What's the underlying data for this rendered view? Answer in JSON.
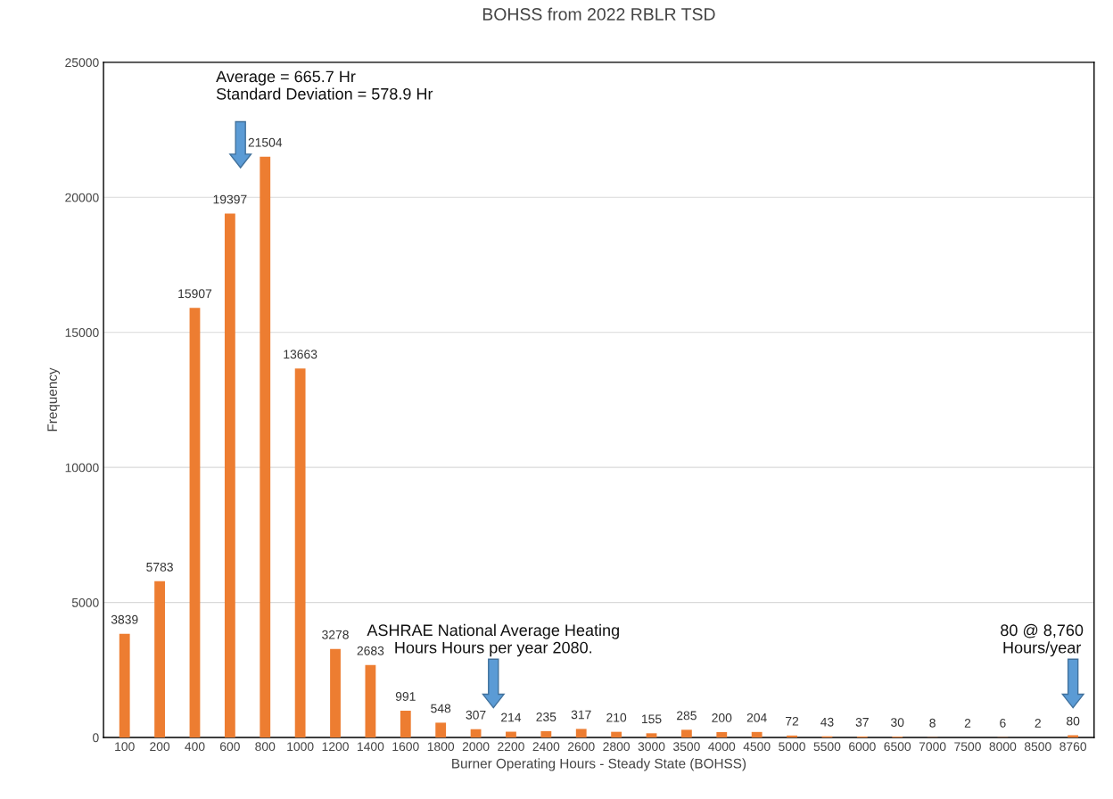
{
  "chart_data": {
    "type": "bar",
    "title": "BOHSS from 2022 RBLR TSD",
    "xlabel": "Burner Operating Hours - Steady State (BOHSS)",
    "ylabel": "Frequency",
    "categories": [
      "100",
      "200",
      "400",
      "600",
      "800",
      "1000",
      "1200",
      "1400",
      "1600",
      "1800",
      "2000",
      "2200",
      "2400",
      "2600",
      "2800",
      "3000",
      "3500",
      "4000",
      "4500",
      "5000",
      "5500",
      "6000",
      "6500",
      "7000",
      "7500",
      "8000",
      "8500",
      "8760"
    ],
    "values": [
      3839,
      5783,
      15907,
      19397,
      21504,
      13663,
      3278,
      2683,
      991,
      548,
      307,
      214,
      235,
      317,
      210,
      155,
      285,
      200,
      204,
      72,
      43,
      37,
      30,
      8,
      2,
      6,
      2,
      80
    ],
    "color": "#ed7d31",
    "data_labels": true,
    "ylim": [
      0,
      25000
    ],
    "yticks": [
      0,
      5000,
      10000,
      15000,
      20000,
      25000
    ],
    "grid": "y",
    "annotations": [
      "Average = 665.7 Hr\nStandard Deviation = 578.9 Hr",
      "ASHRAE National Average Heating\nHours Hours per year 2080.",
      "80 @ 8,760\nHours/year"
    ]
  }
}
